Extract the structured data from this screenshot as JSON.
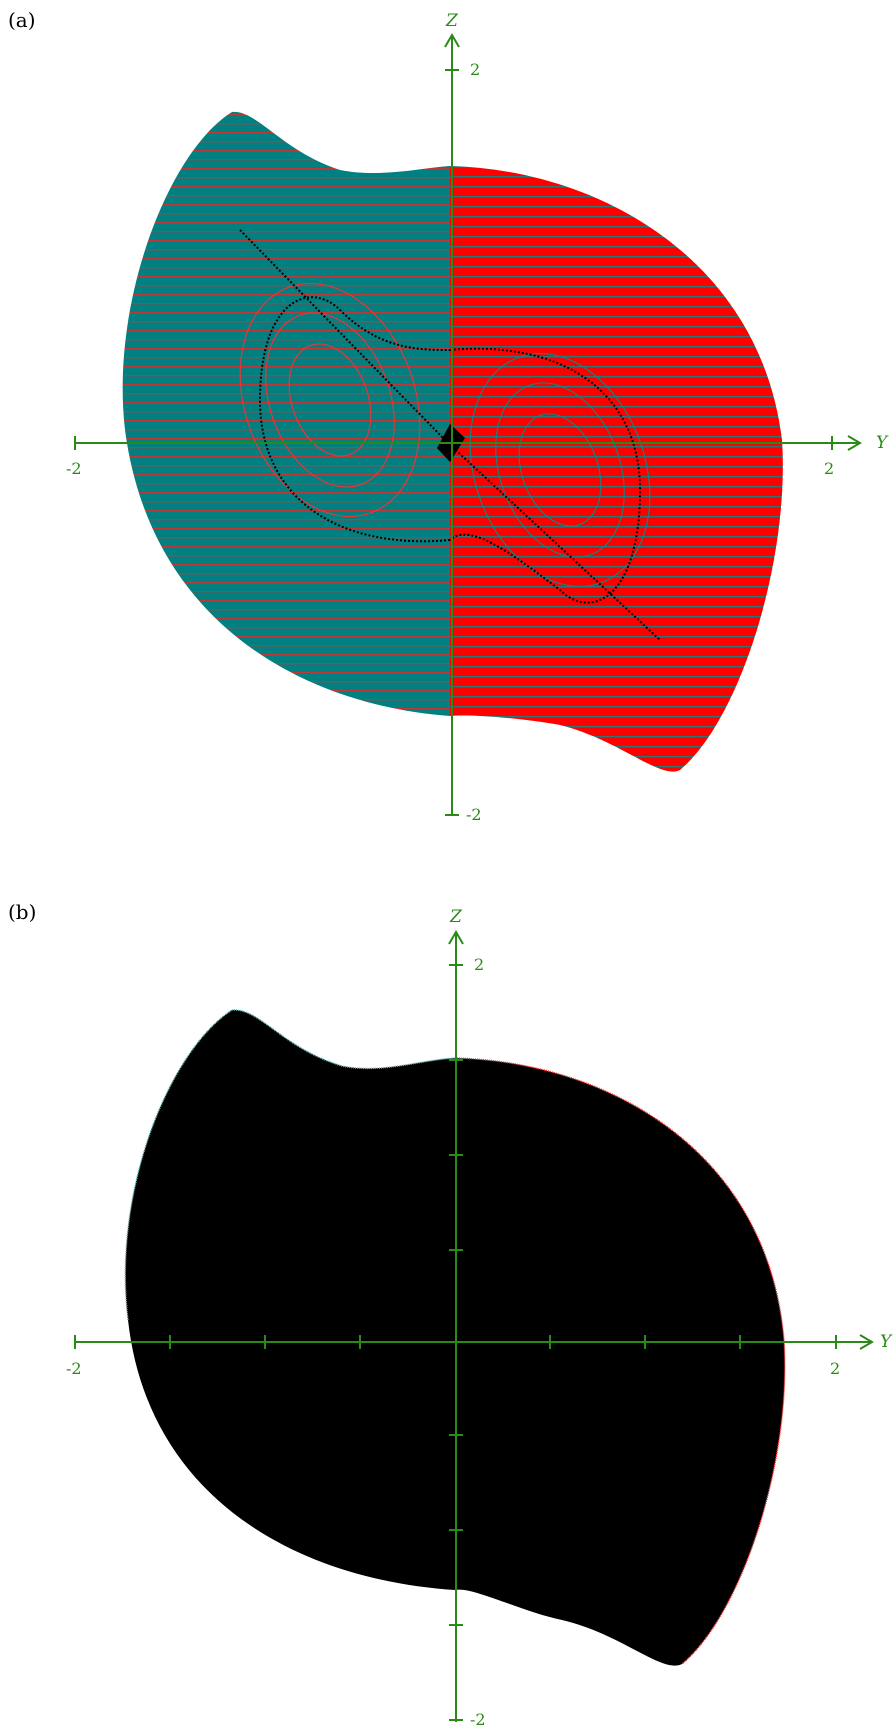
{
  "panels": [
    {
      "label": "(a)",
      "x_axis": {
        "name": "Y",
        "tick_min_label": "-2",
        "tick_max_label": "2"
      },
      "y_axis": {
        "name": "Z",
        "tick_max_label": "2",
        "tick_min_label": "-2"
      },
      "colors": {
        "left": "#008080",
        "right": "#ff0000",
        "trajectory": "#000000",
        "axes": "#2a8a18"
      }
    },
    {
      "label": "(b)",
      "x_axis": {
        "name": "Y",
        "tick_min_label": "-2",
        "tick_max_label": "2"
      },
      "y_axis": {
        "name": "Z",
        "tick_max_label": "2",
        "tick_min_label": "-2"
      },
      "colors": {
        "fill": "#000000",
        "left_edge": "#5fb3b3",
        "right_edge": "#ff3030",
        "axes": "#2a8a18"
      }
    }
  ]
}
